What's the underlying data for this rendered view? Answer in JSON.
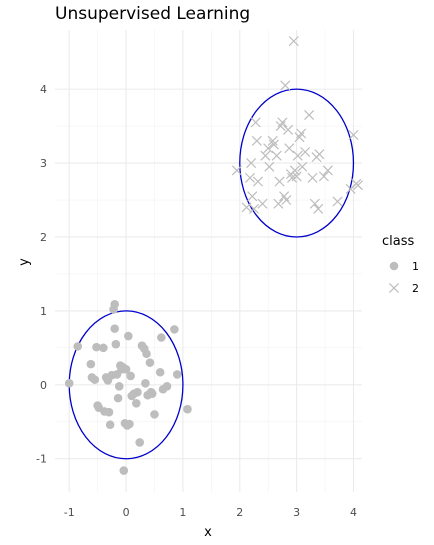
{
  "chart_data": {
    "type": "scatter",
    "title": "Unsupervised Learning",
    "xlabel": "x",
    "ylabel": "y",
    "xlim": [
      -1.25,
      4.15
    ],
    "ylim": [
      -1.45,
      4.8
    ],
    "xticks": [
      -1,
      0,
      1,
      2,
      3,
      4
    ],
    "yticks": [
      -1,
      0,
      1,
      2,
      3,
      4
    ],
    "grid": true,
    "legend": {
      "title": "class",
      "position": "right"
    },
    "point_color": "#bdbdbd",
    "ellipse_color": "#0000cc",
    "series": [
      {
        "name": "1",
        "marker": "circle",
        "points": [
          [
            -1.0,
            0.02
          ],
          [
            -0.85,
            0.52
          ],
          [
            -0.62,
            0.28
          ],
          [
            -0.6,
            0.1
          ],
          [
            -0.55,
            0.07
          ],
          [
            -0.52,
            0.51
          ],
          [
            -0.5,
            -0.28
          ],
          [
            -0.48,
            -0.31
          ],
          [
            -0.4,
            0.5
          ],
          [
            -0.38,
            -0.36
          ],
          [
            -0.35,
            0.1
          ],
          [
            -0.32,
            0.06
          ],
          [
            -0.3,
            -0.37
          ],
          [
            -0.28,
            -0.54
          ],
          [
            -0.25,
            0.13
          ],
          [
            -0.22,
            1.02
          ],
          [
            -0.2,
            1.09
          ],
          [
            -0.2,
            0.76
          ],
          [
            -0.18,
            0.55
          ],
          [
            -0.16,
            0.14
          ],
          [
            -0.14,
            -0.18
          ],
          [
            -0.12,
            -0.02
          ],
          [
            -0.1,
            0.26
          ],
          [
            -0.08,
            0.21
          ],
          [
            -0.06,
            0.24
          ],
          [
            -0.04,
            -1.16
          ],
          [
            -0.02,
            -0.52
          ],
          [
            0.0,
            0.21
          ],
          [
            0.02,
            -0.55
          ],
          [
            0.04,
            0.66
          ],
          [
            0.06,
            -0.53
          ],
          [
            0.08,
            0.12
          ],
          [
            0.1,
            -0.15
          ],
          [
            0.14,
            -0.12
          ],
          [
            0.18,
            -0.25
          ],
          [
            0.2,
            -0.1
          ],
          [
            0.24,
            -0.78
          ],
          [
            0.28,
            0.53
          ],
          [
            0.32,
            0.49
          ],
          [
            0.34,
            0.02
          ],
          [
            0.36,
            0.42
          ],
          [
            0.38,
            -0.14
          ],
          [
            0.42,
            0.3
          ],
          [
            0.44,
            -0.1
          ],
          [
            0.46,
            -0.12
          ],
          [
            0.5,
            -0.4
          ],
          [
            0.6,
            0.17
          ],
          [
            0.62,
            0.64
          ],
          [
            0.65,
            -0.06
          ],
          [
            0.72,
            -0.02
          ],
          [
            0.85,
            0.75
          ],
          [
            0.9,
            0.14
          ],
          [
            1.08,
            -0.33
          ]
        ]
      },
      {
        "name": "2",
        "marker": "x",
        "points": [
          [
            1.95,
            2.9
          ],
          [
            2.12,
            2.4
          ],
          [
            2.18,
            2.8
          ],
          [
            2.2,
            3.0
          ],
          [
            2.22,
            2.55
          ],
          [
            2.25,
            2.38
          ],
          [
            2.28,
            3.55
          ],
          [
            2.3,
            3.3
          ],
          [
            2.32,
            2.75
          ],
          [
            2.4,
            2.45
          ],
          [
            2.45,
            3.1
          ],
          [
            2.5,
            3.2
          ],
          [
            2.52,
            2.95
          ],
          [
            2.58,
            3.3
          ],
          [
            2.6,
            3.25
          ],
          [
            2.65,
            3.1
          ],
          [
            2.68,
            2.45
          ],
          [
            2.7,
            2.75
          ],
          [
            2.72,
            3.5
          ],
          [
            2.75,
            3.55
          ],
          [
            2.78,
            2.55
          ],
          [
            2.8,
            4.05
          ],
          [
            2.82,
            2.5
          ],
          [
            2.85,
            3.45
          ],
          [
            2.87,
            3.2
          ],
          [
            2.9,
            2.85
          ],
          [
            2.92,
            2.8
          ],
          [
            2.95,
            4.65
          ],
          [
            2.97,
            2.9
          ],
          [
            3.0,
            2.82
          ],
          [
            3.02,
            3.1
          ],
          [
            3.05,
            3.35
          ],
          [
            3.08,
            3.4
          ],
          [
            3.1,
            2.95
          ],
          [
            3.15,
            3.15
          ],
          [
            3.22,
            3.65
          ],
          [
            3.28,
            2.8
          ],
          [
            3.32,
            2.45
          ],
          [
            3.35,
            3.08
          ],
          [
            3.38,
            2.38
          ],
          [
            3.4,
            3.12
          ],
          [
            3.48,
            2.82
          ],
          [
            3.55,
            2.9
          ],
          [
            3.72,
            2.48
          ],
          [
            3.95,
            2.65
          ],
          [
            4.0,
            3.38
          ],
          [
            4.05,
            2.72
          ],
          [
            4.08,
            2.7
          ]
        ]
      }
    ],
    "ellipses": [
      {
        "center": [
          0,
          0
        ],
        "radius_x": 1,
        "radius_y": 1
      },
      {
        "center": [
          3,
          3
        ],
        "radius_x": 1,
        "radius_y": 1
      }
    ]
  }
}
